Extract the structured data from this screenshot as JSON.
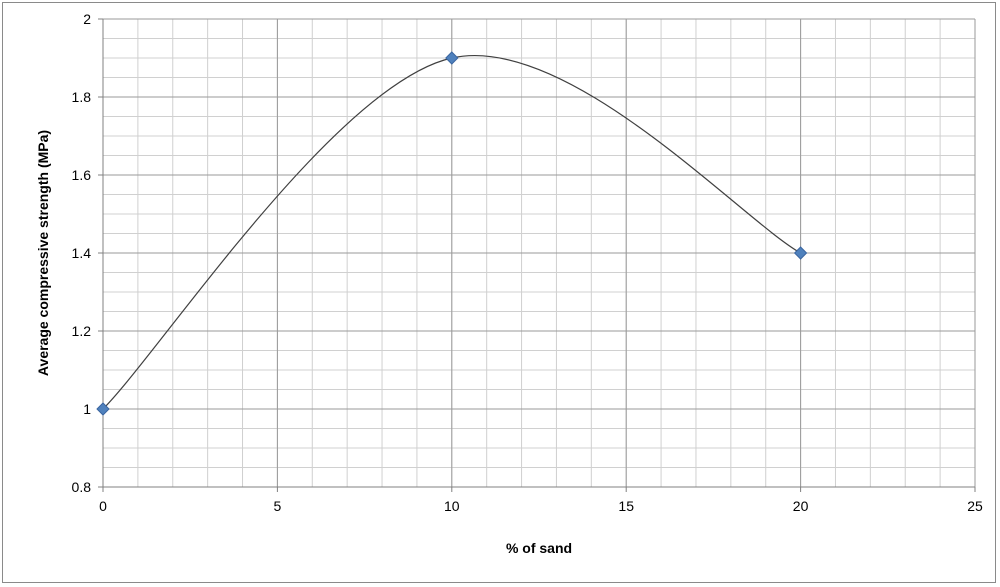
{
  "chart_data": {
    "type": "scatter",
    "title": "",
    "xlabel": "% of sand",
    "ylabel": "Average compressive strength (MPa)",
    "xlim": [
      0,
      25
    ],
    "ylim": [
      0.8,
      2.0
    ],
    "x_major_ticks": [
      0,
      5,
      10,
      15,
      20,
      25
    ],
    "x_tick_labels": [
      "0",
      "5",
      "10",
      "15",
      "20",
      "25"
    ],
    "y_major_ticks": [
      0.8,
      1.0,
      1.2,
      1.4,
      1.6,
      1.8,
      2.0
    ],
    "y_tick_labels": [
      "0.8",
      "1",
      "1.2",
      "1.4",
      "1.6",
      "1.8",
      "2"
    ],
    "x_minor_step": 1,
    "y_minor_step": 0.05,
    "grid": true,
    "legend": "none",
    "series": [
      {
        "x": [
          0,
          10,
          20
        ],
        "y": [
          1.0,
          1.9,
          1.4
        ],
        "marker": "diamond",
        "marker_color": "#4f81bd",
        "line_color": "#404040",
        "line": "smooth"
      }
    ]
  }
}
